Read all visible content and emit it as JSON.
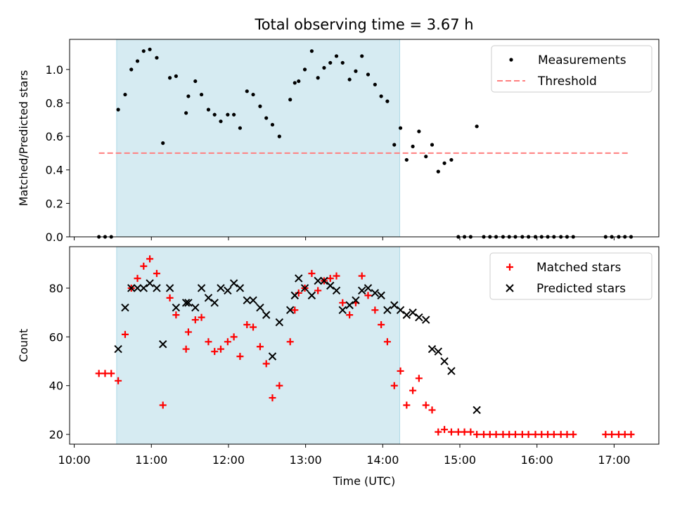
{
  "chart_data": {
    "type": "scatter",
    "title": "Total observing time = 3.67 h",
    "xlabel": "Time (UTC)",
    "x_unit": "hours (UTC)",
    "xlim": [
      9.94,
      17.58
    ],
    "xticks": [
      10,
      11,
      12,
      13,
      14,
      15,
      16,
      17
    ],
    "xtick_labels": [
      "10:00",
      "11:00",
      "12:00",
      "13:00",
      "14:00",
      "15:00",
      "16:00",
      "17:00"
    ],
    "shaded_span": [
      10.55,
      14.22
    ],
    "shade_color": "#add8e6",
    "panels": [
      {
        "ylabel": "Matched/Predicted stars",
        "ylim": [
          0,
          1.18
        ],
        "yticks": [
          0.0,
          0.2,
          0.4,
          0.6,
          0.8,
          1.0
        ],
        "ytick_labels": [
          "0.0",
          "0.2",
          "0.4",
          "0.6",
          "0.8",
          "1.0"
        ],
        "legend_position": "upper right",
        "legend": [
          "Measurements",
          "Threshold"
        ],
        "threshold": {
          "name": "Threshold",
          "y": 0.5,
          "x_range": [
            10.32,
            17.2
          ],
          "color": "#ff7f7f"
        },
        "series": [
          {
            "name": "Measurements",
            "marker": "dot",
            "color": "#000000",
            "points": [
              [
                10.32,
                0.0
              ],
              [
                10.4,
                0.0
              ],
              [
                10.48,
                0.0
              ],
              [
                10.57,
                0.76
              ],
              [
                10.66,
                0.85
              ],
              [
                10.74,
                1.0
              ],
              [
                10.82,
                1.05
              ],
              [
                10.9,
                1.11
              ],
              [
                10.98,
                1.12
              ],
              [
                11.07,
                1.07
              ],
              [
                11.15,
                0.56
              ],
              [
                11.24,
                0.95
              ],
              [
                11.32,
                0.96
              ],
              [
                11.45,
                0.74
              ],
              [
                11.48,
                0.84
              ],
              [
                11.57,
                0.93
              ],
              [
                11.65,
                0.85
              ],
              [
                11.74,
                0.76
              ],
              [
                11.82,
                0.73
              ],
              [
                11.9,
                0.69
              ],
              [
                11.99,
                0.73
              ],
              [
                12.07,
                0.73
              ],
              [
                12.15,
                0.65
              ],
              [
                12.24,
                0.87
              ],
              [
                12.32,
                0.85
              ],
              [
                12.41,
                0.78
              ],
              [
                12.49,
                0.71
              ],
              [
                12.57,
                0.67
              ],
              [
                12.66,
                0.6
              ],
              [
                12.8,
                0.82
              ],
              [
                12.86,
                0.92
              ],
              [
                12.91,
                0.93
              ],
              [
                12.99,
                1.0
              ],
              [
                13.08,
                1.11
              ],
              [
                13.16,
                0.95
              ],
              [
                13.24,
                1.01
              ],
              [
                13.32,
                1.04
              ],
              [
                13.4,
                1.08
              ],
              [
                13.48,
                1.04
              ],
              [
                13.57,
                0.94
              ],
              [
                13.65,
                0.99
              ],
              [
                13.73,
                1.08
              ],
              [
                13.81,
                0.97
              ],
              [
                13.9,
                0.91
              ],
              [
                13.98,
                0.84
              ],
              [
                14.06,
                0.81
              ],
              [
                14.15,
                0.55
              ],
              [
                14.23,
                0.65
              ],
              [
                14.31,
                0.46
              ],
              [
                14.39,
                0.54
              ],
              [
                14.47,
                0.63
              ],
              [
                14.56,
                0.48
              ],
              [
                14.64,
                0.55
              ],
              [
                14.72,
                0.39
              ],
              [
                14.8,
                0.44
              ],
              [
                14.89,
                0.46
              ],
              [
                14.98,
                0.0
              ],
              [
                15.06,
                0.0
              ],
              [
                15.14,
                0.0
              ],
              [
                15.22,
                0.66
              ],
              [
                15.31,
                0.0
              ],
              [
                15.39,
                0.0
              ],
              [
                15.47,
                0.0
              ],
              [
                15.56,
                0.0
              ],
              [
                15.64,
                0.0
              ],
              [
                15.72,
                0.0
              ],
              [
                15.81,
                0.0
              ],
              [
                15.89,
                0.0
              ],
              [
                15.98,
                0.0
              ],
              [
                16.06,
                0.0
              ],
              [
                16.14,
                0.0
              ],
              [
                16.22,
                0.0
              ],
              [
                16.31,
                0.0
              ],
              [
                16.39,
                0.0
              ],
              [
                16.47,
                0.0
              ],
              [
                16.89,
                0.0
              ],
              [
                16.97,
                0.0
              ],
              [
                17.06,
                0.0
              ],
              [
                17.14,
                0.0
              ],
              [
                17.22,
                0.0
              ]
            ]
          }
        ]
      },
      {
        "ylabel": "Count",
        "ylim": [
          16,
          97
        ],
        "yticks": [
          20,
          40,
          60,
          80
        ],
        "ytick_labels": [
          "20",
          "40",
          "60",
          "80"
        ],
        "legend_position": "upper right",
        "legend": [
          "Matched stars",
          "Predicted stars"
        ],
        "series": [
          {
            "name": "Matched stars",
            "marker": "plus",
            "color": "#ff0000",
            "points": [
              [
                10.32,
                45
              ],
              [
                10.4,
                45
              ],
              [
                10.48,
                45
              ],
              [
                10.57,
                42
              ],
              [
                10.66,
                61
              ],
              [
                10.74,
                80
              ],
              [
                10.82,
                84
              ],
              [
                10.9,
                89
              ],
              [
                10.98,
                92
              ],
              [
                11.07,
                86
              ],
              [
                11.15,
                32
              ],
              [
                11.24,
                76
              ],
              [
                11.32,
                69
              ],
              [
                11.45,
                55
              ],
              [
                11.48,
                62
              ],
              [
                11.57,
                67
              ],
              [
                11.65,
                68
              ],
              [
                11.74,
                58
              ],
              [
                11.82,
                54
              ],
              [
                11.9,
                55
              ],
              [
                11.99,
                58
              ],
              [
                12.07,
                60
              ],
              [
                12.15,
                52
              ],
              [
                12.24,
                65
              ],
              [
                12.32,
                64
              ],
              [
                12.41,
                56
              ],
              [
                12.49,
                49
              ],
              [
                12.57,
                35
              ],
              [
                12.66,
                40
              ],
              [
                12.8,
                58
              ],
              [
                12.86,
                71
              ],
              [
                12.91,
                78
              ],
              [
                12.99,
                80
              ],
              [
                13.08,
                86
              ],
              [
                13.16,
                79
              ],
              [
                13.24,
                83
              ],
              [
                13.32,
                84
              ],
              [
                13.4,
                85
              ],
              [
                13.48,
                74
              ],
              [
                13.57,
                69
              ],
              [
                13.65,
                74
              ],
              [
                13.73,
                85
              ],
              [
                13.81,
                77
              ],
              [
                13.9,
                71
              ],
              [
                13.98,
                65
              ],
              [
                14.06,
                58
              ],
              [
                14.15,
                40
              ],
              [
                14.23,
                46
              ],
              [
                14.31,
                32
              ],
              [
                14.39,
                38
              ],
              [
                14.47,
                43
              ],
              [
                14.56,
                32
              ],
              [
                14.64,
                30
              ],
              [
                14.72,
                21
              ],
              [
                14.8,
                22
              ],
              [
                14.89,
                21
              ],
              [
                14.98,
                21
              ],
              [
                15.06,
                21
              ],
              [
                15.14,
                21
              ],
              [
                15.22,
                20
              ],
              [
                15.31,
                20
              ],
              [
                15.39,
                20
              ],
              [
                15.47,
                20
              ],
              [
                15.56,
                20
              ],
              [
                15.64,
                20
              ],
              [
                15.72,
                20
              ],
              [
                15.81,
                20
              ],
              [
                15.89,
                20
              ],
              [
                15.98,
                20
              ],
              [
                16.06,
                20
              ],
              [
                16.14,
                20
              ],
              [
                16.22,
                20
              ],
              [
                16.31,
                20
              ],
              [
                16.39,
                20
              ],
              [
                16.47,
                20
              ],
              [
                16.89,
                20
              ],
              [
                16.97,
                20
              ],
              [
                17.06,
                20
              ],
              [
                17.14,
                20
              ],
              [
                17.22,
                20
              ]
            ]
          },
          {
            "name": "Predicted stars",
            "marker": "x",
            "color": "#000000",
            "points": [
              [
                10.57,
                55
              ],
              [
                10.66,
                72
              ],
              [
                10.74,
                80
              ],
              [
                10.82,
                80
              ],
              [
                10.9,
                80
              ],
              [
                10.98,
                82
              ],
              [
                11.07,
                80
              ],
              [
                11.15,
                57
              ],
              [
                11.24,
                80
              ],
              [
                11.32,
                72
              ],
              [
                11.45,
                74
              ],
              [
                11.48,
                74
              ],
              [
                11.57,
                72
              ],
              [
                11.65,
                80
              ],
              [
                11.74,
                76
              ],
              [
                11.82,
                74
              ],
              [
                11.9,
                80
              ],
              [
                11.99,
                79
              ],
              [
                12.07,
                82
              ],
              [
                12.15,
                80
              ],
              [
                12.24,
                75
              ],
              [
                12.32,
                75
              ],
              [
                12.41,
                72
              ],
              [
                12.49,
                69
              ],
              [
                12.57,
                52
              ],
              [
                12.66,
                66
              ],
              [
                12.8,
                71
              ],
              [
                12.86,
                77
              ],
              [
                12.91,
                84
              ],
              [
                12.99,
                80
              ],
              [
                13.08,
                77
              ],
              [
                13.16,
                83
              ],
              [
                13.24,
                83
              ],
              [
                13.32,
                81
              ],
              [
                13.4,
                79
              ],
              [
                13.48,
                71
              ],
              [
                13.57,
                73
              ],
              [
                13.65,
                75
              ],
              [
                13.73,
                79
              ],
              [
                13.81,
                80
              ],
              [
                13.9,
                78
              ],
              [
                13.98,
                77
              ],
              [
                14.06,
                71
              ],
              [
                14.15,
                73
              ],
              [
                14.23,
                71
              ],
              [
                14.31,
                69
              ],
              [
                14.39,
                70
              ],
              [
                14.47,
                68
              ],
              [
                14.56,
                67
              ],
              [
                14.64,
                55
              ],
              [
                14.72,
                54
              ],
              [
                14.8,
                50
              ],
              [
                14.89,
                46
              ],
              [
                15.22,
                30
              ]
            ]
          }
        ]
      }
    ]
  }
}
